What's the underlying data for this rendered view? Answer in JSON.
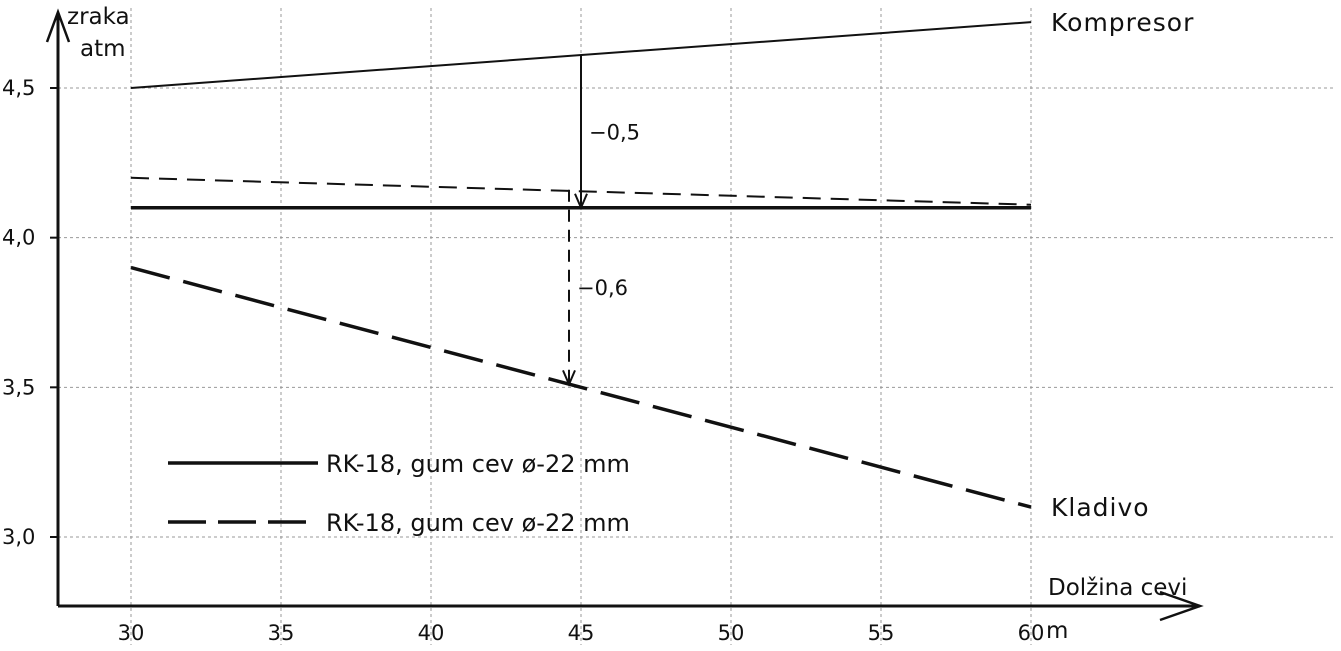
{
  "chart_data": {
    "type": "line",
    "xlabel": "Dolžina cevi",
    "xunit": "m",
    "ylabel_lines": [
      "zraka",
      "atm"
    ],
    "xlim": [
      30,
      60
    ],
    "ylim": [
      2.75,
      4.75
    ],
    "x_ticks": [
      30,
      35,
      40,
      45,
      50,
      55,
      60
    ],
    "x_tick_labels": [
      "30",
      "35",
      "40",
      "45",
      "50",
      "55",
      "60"
    ],
    "y_ticks": [
      3.0,
      3.5,
      4.0,
      4.5
    ],
    "y_tick_labels": [
      "3,0",
      "3,5",
      "4,0",
      "4,5"
    ],
    "grid": true,
    "series": [
      {
        "style": "solid-thin",
        "x": [
          30,
          60
        ],
        "y": [
          4.5,
          4.72
        ]
      },
      {
        "style": "solid-bold",
        "x": [
          30,
          60
        ],
        "y": [
          4.1,
          4.1
        ]
      },
      {
        "style": "dashed-short",
        "x": [
          30,
          60
        ],
        "y": [
          4.2,
          4.11
        ]
      },
      {
        "style": "dashed-long",
        "x": [
          30,
          60
        ],
        "y": [
          3.9,
          3.1
        ]
      }
    ],
    "line_labels": [
      {
        "text": "Kompresor",
        "series": 0
      },
      {
        "text": "Kladivo",
        "series": 3
      }
    ],
    "legend": [
      {
        "style": "solid-bold",
        "label": "RK-18, gum cev ø-22 mm"
      },
      {
        "style": "dashed-long",
        "label": "RK-18, gum cev ø-22 mm"
      }
    ],
    "annotations": [
      {
        "text": "−0,5",
        "x": 45,
        "from": 4.61,
        "to": 4.1,
        "style": "solid"
      },
      {
        "text": "−0,6",
        "x": 44.6,
        "from": 4.16,
        "to": 3.51,
        "style": "dashed"
      }
    ]
  }
}
